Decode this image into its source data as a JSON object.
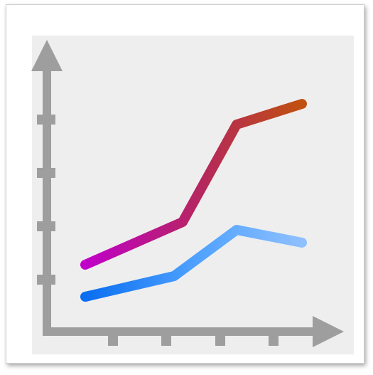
{
  "icon": {
    "name": "line-chart-icon",
    "background_color": "#eeeeee",
    "axis_color": "#9e9e9e"
  },
  "chart_data": {
    "type": "line",
    "x": [
      0,
      1,
      2,
      3,
      4
    ],
    "series": [
      {
        "values": [
          2.0,
          3.0,
          5.8,
          6.7
        ],
        "x": [
          0,
          1.45,
          2.2,
          3.1
        ],
        "color_start": "#c000c8",
        "color_mid": "#b5285a",
        "color_end": "#c0500f"
      },
      {
        "values": [
          0.9,
          1.5,
          3.3,
          2.9
        ],
        "x": [
          0,
          1.3,
          2.2,
          3.1
        ],
        "color_start": "#0a6ef0",
        "color_mid": "#4da0ff",
        "color_end": "#8ec0ff"
      }
    ],
    "xlim": [
      0,
      3.6
    ],
    "ylim": [
      0,
      8
    ],
    "grid": false
  }
}
